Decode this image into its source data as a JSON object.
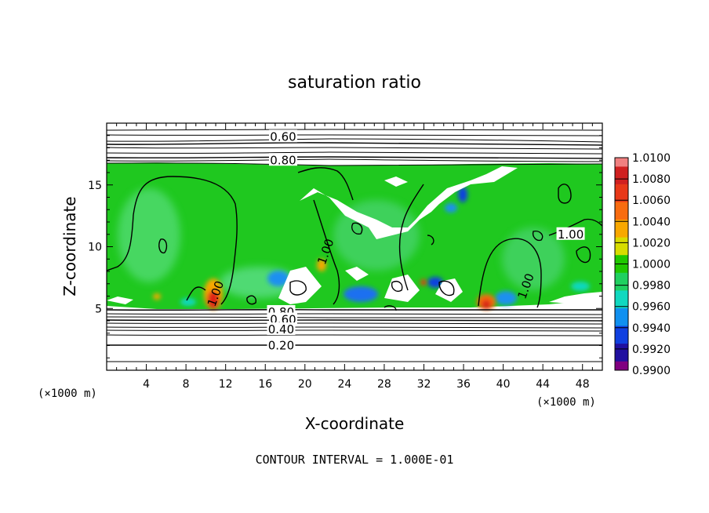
{
  "chart_data": {
    "type": "heatmap",
    "title": "saturation ratio",
    "xlabel": "X-coordinate",
    "ylabel": "Z-coordinate",
    "x_unit": "(×1000 m)",
    "z_unit": "(×1000 m)",
    "xlim": [
      0,
      50
    ],
    "ylim": [
      0,
      20
    ],
    "x_ticks": [
      4,
      8,
      12,
      16,
      20,
      24,
      28,
      32,
      36,
      40,
      44,
      48
    ],
    "y_ticks": [
      5,
      10,
      15
    ],
    "colorbar": {
      "min": 0.99,
      "max": 1.01,
      "ticks": [
        "1.0100",
        "1.0080",
        "1.0060",
        "1.0040",
        "1.0020",
        "1.0000",
        "0.9980",
        "0.9960",
        "0.9940",
        "0.9920",
        "0.9900"
      ],
      "colors": [
        "#d02020",
        "#e83818",
        "#f86c10",
        "#f8a800",
        "#d8dc00",
        "#20c800",
        "#20d060",
        "#10d8c0",
        "#1090f0",
        "#1040e0",
        "#2010a0"
      ],
      "top_color": "#f08080",
      "bottom_color": "#800080"
    },
    "contour_interval": "CONTOUR INTERVAL = 1.000E-01",
    "contour_labels": [
      {
        "text": "0.60",
        "x": 17.8,
        "z": 18.9
      },
      {
        "text": "0.80",
        "x": 17.8,
        "z": 17.0
      },
      {
        "text": "0.80",
        "x": 17.6,
        "z": 4.7
      },
      {
        "text": "0.60",
        "x": 17.8,
        "z": 4.1
      },
      {
        "text": "0.40",
        "x": 17.6,
        "z": 3.3
      },
      {
        "text": "0.20",
        "x": 17.6,
        "z": 2.0
      },
      {
        "text": "1.00",
        "x": 11.0,
        "z": 6.2
      },
      {
        "text": "1.00",
        "x": 22.1,
        "z": 9.6
      },
      {
        "text": "1.00",
        "x": 42.3,
        "z": 6.8
      },
      {
        "text": "1.00",
        "x": 46.8,
        "z": 11.0
      }
    ],
    "unsaturated_regions_note": ""
  }
}
